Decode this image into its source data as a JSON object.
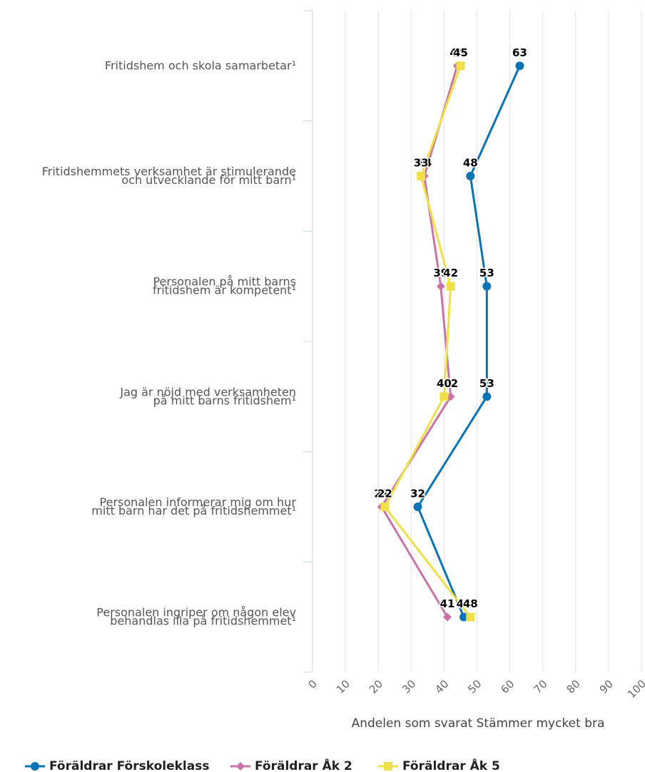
{
  "chart_data": {
    "type": "line",
    "orientation": "horizontal",
    "categories": [
      "Fritidshem och skola samarbetar¹",
      "Fritidshemmets verksamhet är stimulerande\noch utvecklande för mitt barn¹",
      "Personalen på mitt barns\nfritidshem är kompetent¹",
      "Jag är nöjd med verksamheten\npå mitt barns fritidshem¹",
      "Personalen informerar mig om hur\nmitt barn har det på fritidshemmet¹",
      "Personalen ingriper om någon elev\nbehandlas illa på fritidshemmet¹"
    ],
    "series": [
      {
        "name": "Föräldrar Förskoleklass",
        "color": "#0a73b3",
        "marker": "circle",
        "values": [
          63,
          48,
          53,
          53,
          32,
          46
        ]
      },
      {
        "name": "Föräldrar Åk 2",
        "color": "#c974a8",
        "marker": "diamond",
        "values": [
          44,
          34,
          39,
          42,
          21,
          41
        ]
      },
      {
        "name": "Föräldrar Åk 5",
        "color": "#efe04a",
        "marker": "square",
        "values": [
          45,
          33,
          42,
          40,
          22,
          48
        ]
      }
    ],
    "xlabel": "Andelen som svarat Stämmer mycket bra",
    "xlim": [
      0,
      100
    ],
    "xticks": [
      0,
      10,
      20,
      30,
      40,
      50,
      60,
      70,
      80,
      90,
      100
    ],
    "grid": true,
    "legend": "bottom"
  }
}
